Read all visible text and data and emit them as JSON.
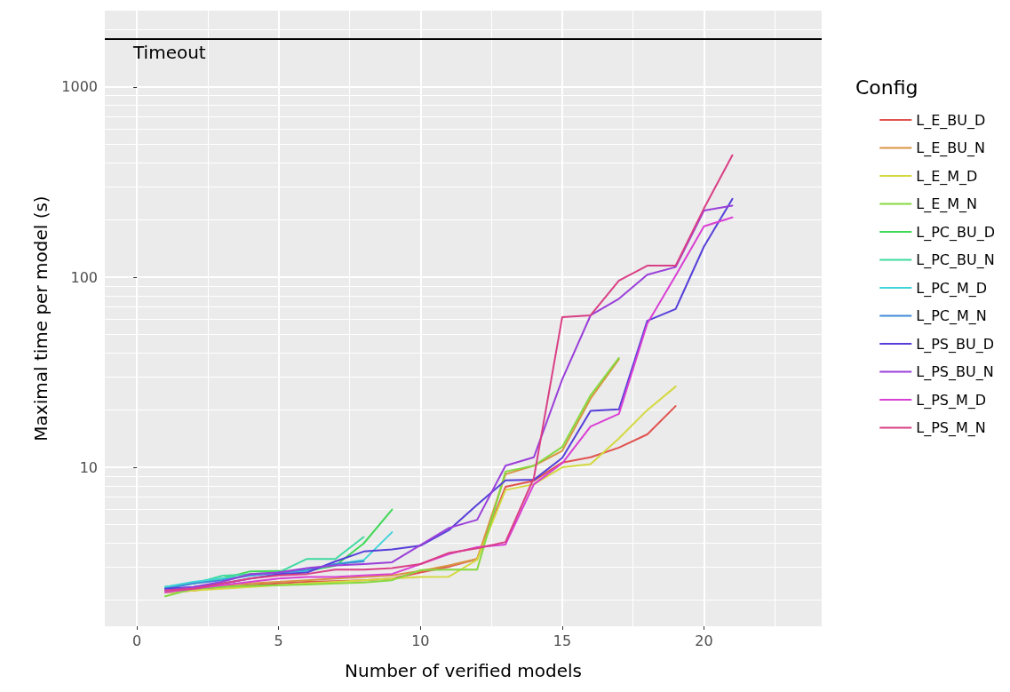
{
  "chart_data": {
    "type": "line",
    "xlabel": "Number of verified models",
    "ylabel": "Maximal time per model (s)",
    "legend_title": "Config",
    "legend": "right",
    "grid": true,
    "log": "y",
    "marker": "none",
    "line_style": "solid",
    "xlim": [
      -1.13,
      24.15
    ],
    "xticks": [
      0,
      {
        "value": 2.5,
        "label": null
      },
      5,
      {
        "value": 7.5,
        "label": null
      },
      10,
      {
        "value": 12.5,
        "label": null
      },
      15,
      {
        "value": 17.5,
        "label": null
      },
      20,
      {
        "value": 22.5,
        "label": null
      }
    ],
    "ylim": [
      1.46,
      2520
    ],
    "yticks": [
      {
        "value": 2,
        "label": null
      },
      {
        "value": 3,
        "label": null
      },
      {
        "value": 4,
        "label": null
      },
      {
        "value": 5,
        "label": null
      },
      {
        "value": 6,
        "label": null
      },
      {
        "value": 7,
        "label": null
      },
      {
        "value": 8,
        "label": null
      },
      {
        "value": 9,
        "label": null
      },
      10,
      {
        "value": 20,
        "label": null
      },
      {
        "value": 30,
        "label": null
      },
      {
        "value": 40,
        "label": null
      },
      {
        "value": 50,
        "label": null
      },
      {
        "value": 60,
        "label": null
      },
      {
        "value": 70,
        "label": null
      },
      {
        "value": 80,
        "label": null
      },
      {
        "value": 90,
        "label": null
      },
      100,
      {
        "value": 200,
        "label": null
      },
      {
        "value": 300,
        "label": null
      },
      {
        "value": 400,
        "label": null
      },
      {
        "value": 500,
        "label": null
      },
      {
        "value": 600,
        "label": null
      },
      {
        "value": 700,
        "label": null
      },
      {
        "value": 800,
        "label": null
      },
      {
        "value": 900,
        "label": null
      },
      1000,
      {
        "value": 2000,
        "label": null
      }
    ],
    "ref_lines": [
      {
        "axis": "y",
        "value": 1800,
        "label": "Timeout",
        "color": "#000000"
      }
    ],
    "x": [
      1,
      2,
      3,
      4,
      5,
      6,
      7,
      8,
      9,
      10,
      11,
      12,
      13,
      14,
      15,
      16,
      17,
      18,
      19,
      20,
      21
    ],
    "series": [
      {
        "name": "L_E_BU_D",
        "color": "#e0524f",
        "values": [
          2.2,
          2.25,
          2.35,
          2.4,
          2.45,
          2.5,
          2.52,
          2.55,
          2.6,
          2.8,
          3.0,
          3.3,
          7.9,
          8.5,
          10.6,
          11.3,
          12.7,
          14.9,
          21,
          null,
          null
        ]
      },
      {
        "name": "L_E_BU_N",
        "color": "#d99441",
        "values": [
          2.2,
          2.3,
          2.4,
          2.45,
          2.5,
          2.55,
          2.6,
          2.65,
          2.7,
          2.85,
          3.05,
          3.3,
          9.2,
          10.2,
          12.2,
          23,
          37,
          null,
          null,
          null,
          null
        ]
      },
      {
        "name": "L_E_M_D",
        "color": "#d4d93f",
        "values": [
          2.2,
          2.25,
          2.3,
          2.35,
          2.4,
          2.45,
          2.5,
          2.55,
          2.6,
          2.65,
          2.66,
          3.27,
          7.6,
          8.15,
          10.0,
          10.4,
          14.2,
          20,
          26.6,
          null,
          null
        ]
      },
      {
        "name": "L_E_M_N",
        "color": "#85d93f",
        "values": [
          2.1,
          2.3,
          2.35,
          2.38,
          2.4,
          2.42,
          2.45,
          2.48,
          2.55,
          2.88,
          2.9,
          2.9,
          9.5,
          10.2,
          12.8,
          23.9,
          37.6,
          null,
          null,
          null,
          null
        ]
      },
      {
        "name": "L_PC_BU_D",
        "color": "#3fd955",
        "values": [
          2.35,
          2.45,
          2.6,
          2.84,
          2.85,
          2.85,
          3.04,
          3.98,
          6.0,
          null,
          null,
          null,
          null,
          null,
          null,
          null,
          null,
          null,
          null,
          null,
          null
        ]
      },
      {
        "name": "L_PC_BU_N",
        "color": "#3fd9a0",
        "values": [
          2.35,
          2.45,
          2.69,
          2.75,
          2.8,
          3.3,
          3.3,
          4.3,
          null,
          null,
          null,
          null,
          null,
          null,
          null,
          null,
          null,
          null,
          null,
          null,
          null
        ]
      },
      {
        "name": "L_PC_M_D",
        "color": "#3fd4d9",
        "values": [
          2.35,
          2.5,
          2.6,
          2.7,
          2.8,
          2.85,
          3.1,
          3.25,
          4.56,
          null,
          null,
          null,
          null,
          null,
          null,
          null,
          null,
          null,
          null,
          null,
          null
        ]
      },
      {
        "name": "L_PC_M_N",
        "color": "#3f8ad9",
        "values": [
          2.3,
          2.45,
          2.55,
          2.7,
          2.8,
          2.9,
          3.1,
          3.2,
          null,
          null,
          null,
          null,
          null,
          null,
          null,
          null,
          null,
          null,
          null,
          null,
          null
        ]
      },
      {
        "name": "L_PS_BU_D",
        "color": "#553fd9",
        "values": [
          2.3,
          2.35,
          2.45,
          2.6,
          2.75,
          2.8,
          3.2,
          3.61,
          3.7,
          3.87,
          4.67,
          6.36,
          8.54,
          8.6,
          11.2,
          19.8,
          20.2,
          59,
          68,
          145,
          258
        ]
      },
      {
        "name": "L_PS_BU_N",
        "color": "#9a3fd9",
        "values": [
          2.25,
          2.35,
          2.5,
          2.75,
          2.8,
          2.95,
          3.05,
          3.1,
          3.17,
          3.9,
          4.8,
          5.3,
          10.2,
          11.3,
          29,
          63,
          77,
          103,
          113,
          224,
          238
        ]
      },
      {
        "name": "L_PS_M_D",
        "color": "#d93fd4",
        "values": [
          2.2,
          2.3,
          2.4,
          2.5,
          2.6,
          2.65,
          2.65,
          2.7,
          2.75,
          3.1,
          3.5,
          3.8,
          3.93,
          8.15,
          10.5,
          16.4,
          19.1,
          57,
          102,
          185,
          206
        ]
      },
      {
        "name": "L_PS_M_N",
        "color": "#d93f85",
        "values": [
          2.25,
          2.3,
          2.45,
          2.6,
          2.7,
          2.75,
          2.9,
          2.9,
          2.95,
          3.1,
          3.55,
          3.75,
          4.05,
          8.8,
          61.6,
          63,
          96,
          115,
          115,
          230,
          438
        ]
      }
    ]
  }
}
